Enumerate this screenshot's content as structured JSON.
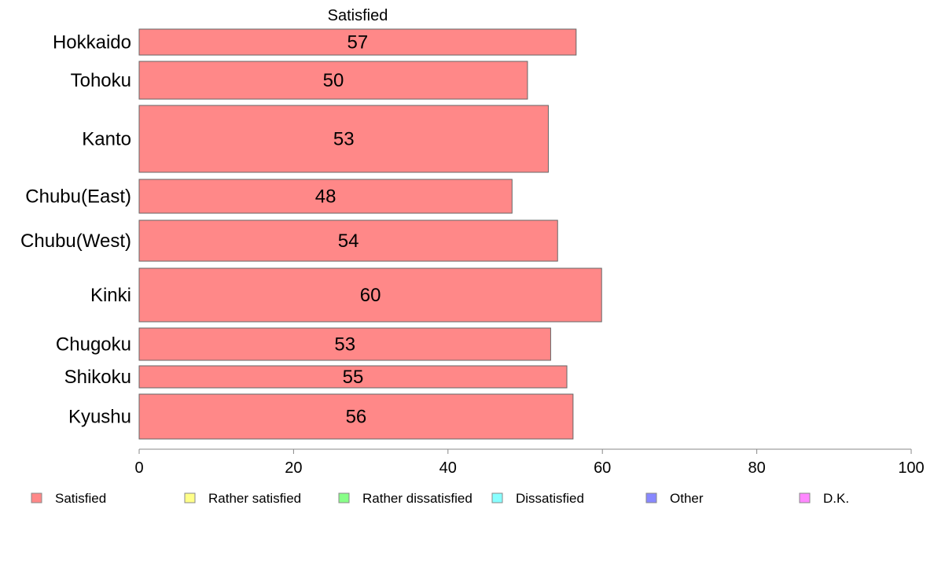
{
  "chart_data": {
    "type": "bar",
    "orientation": "horizontal",
    "title": "Satisfied",
    "categories": [
      "Hokkaido",
      "Tohoku",
      "Kanto",
      "Chubu(East)",
      "Chubu(West)",
      "Kinki",
      "Chugoku",
      "Shikoku",
      "Kyushu"
    ],
    "values": [
      56.6,
      50.3,
      53.0,
      48.3,
      54.2,
      59.9,
      53.3,
      55.4,
      56.2
    ],
    "value_labels": [
      "57",
      "50",
      "53",
      "48",
      "54",
      "60",
      "53",
      "55",
      "56"
    ],
    "bar_color": "#ff8888",
    "bar_stroke": "#666666",
    "xlim": [
      0,
      100
    ],
    "xticks": [
      "0",
      "20",
      "40",
      "60",
      "80",
      "100"
    ],
    "grid": false,
    "legend_position": "bottom",
    "legend": [
      {
        "label": "Satisfied",
        "color": "#ff8888"
      },
      {
        "label": "Rather satisfied",
        "color": "#ffff88"
      },
      {
        "label": "Rather dissatisfied",
        "color": "#88ff88"
      },
      {
        "label": "Dissatisfied",
        "color": "#88ffff"
      },
      {
        "label": "Other",
        "color": "#8888ff"
      },
      {
        "label": "D.K.",
        "color": "#ff88ff"
      }
    ]
  }
}
